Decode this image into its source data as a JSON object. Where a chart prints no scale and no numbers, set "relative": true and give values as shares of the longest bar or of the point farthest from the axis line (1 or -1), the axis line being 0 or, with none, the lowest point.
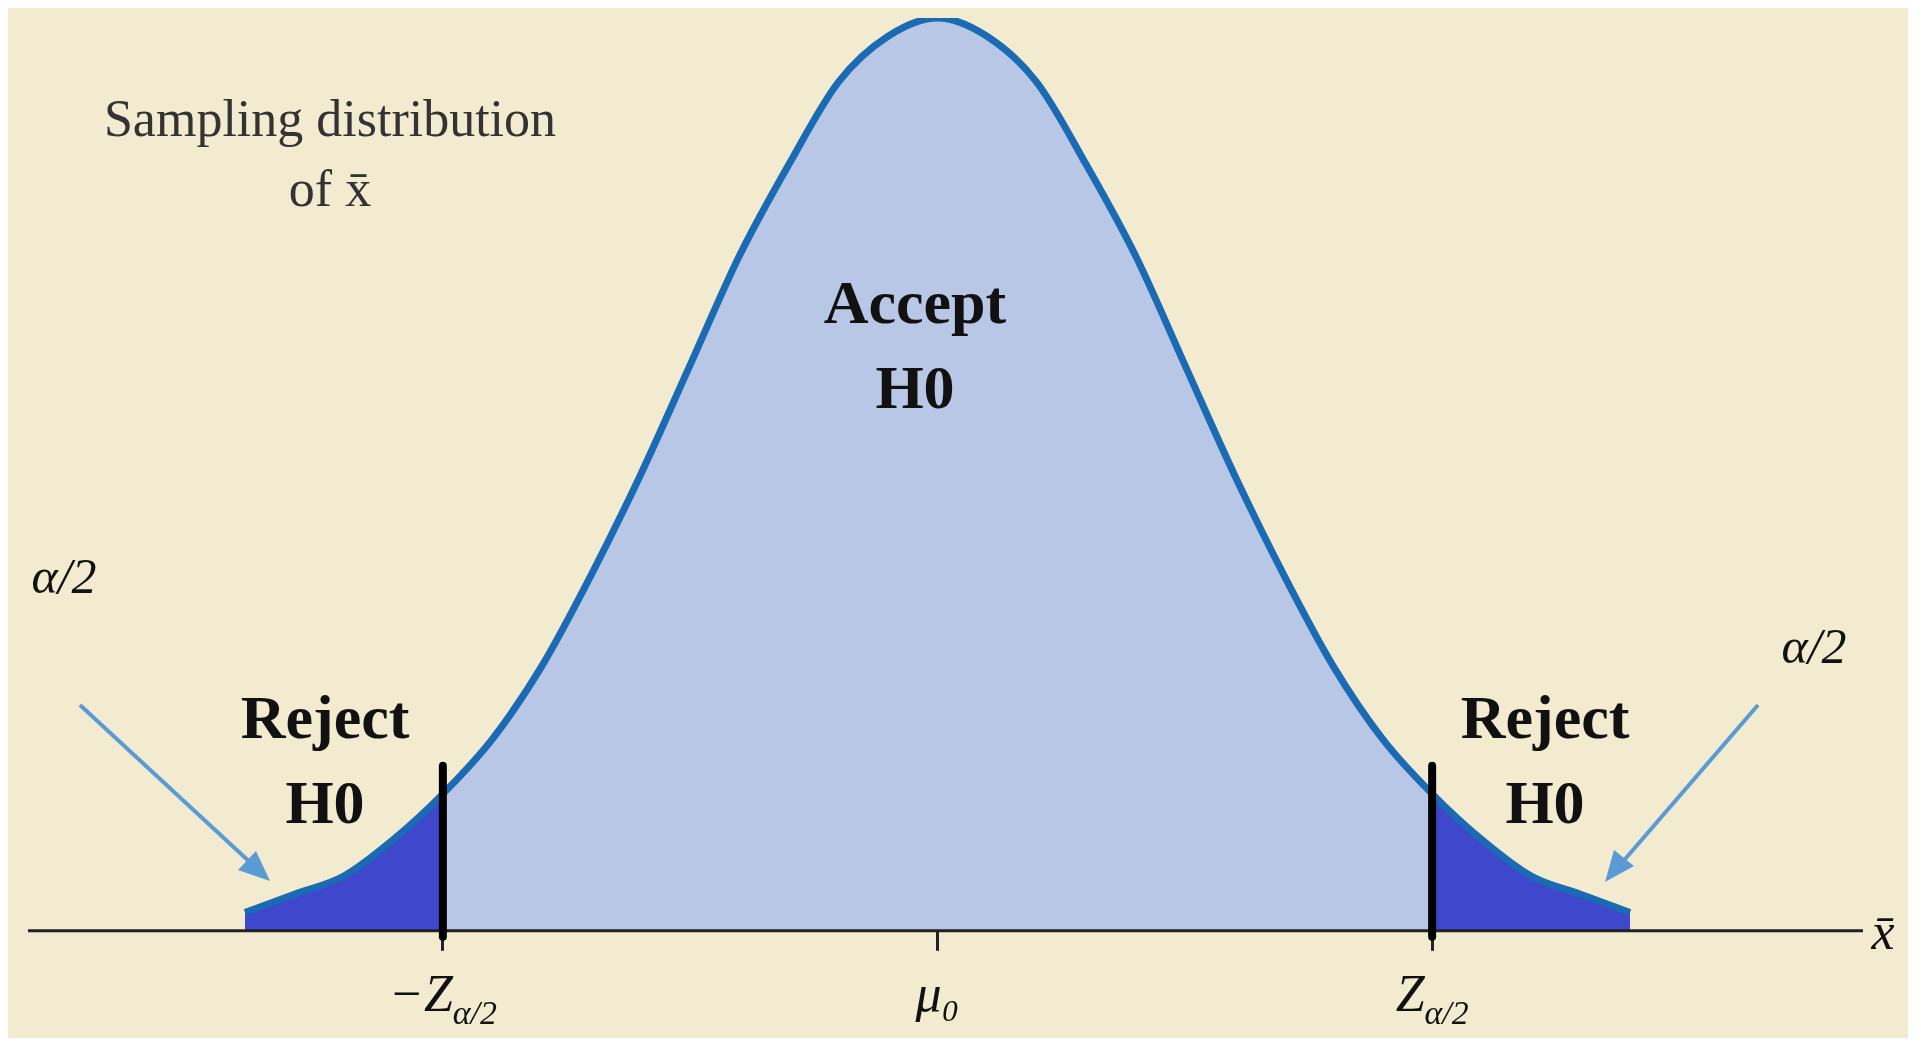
{
  "chart_data": {
    "type": "area",
    "relative": true,
    "title": "Sampling distribution of x̄",
    "xlabel": "x̄",
    "categories": [
      null,
      null,
      null,
      null,
      "−Z$_{α/2}$",
      null,
      null,
      null,
      null,
      null,
      null,
      null,
      null,
      null,
      "μ₀",
      null,
      null,
      null,
      null,
      null,
      null,
      null,
      null,
      null,
      "Z$_{α/2}$",
      null,
      null,
      null,
      null
    ],
    "series": [
      {
        "color": "#b8c7e6",
        "values": [
          null,
          null,
          null,
          null,
          0.15,
          0.21,
          0.29,
          0.39,
          0.5,
          0.62,
          0.74,
          0.84,
          0.93,
          0.98,
          1,
          0.98,
          0.93,
          0.84,
          0.74,
          0.62,
          0.5,
          0.39,
          0.29,
          0.21,
          0.15,
          null,
          null,
          null,
          null
        ]
      },
      {
        "color": "#3f48cc",
        "values": [
          0.02,
          0.04,
          0.06,
          0.1,
          0.15,
          null,
          null,
          null,
          null,
          null,
          null,
          null,
          null,
          null,
          null,
          null,
          null,
          null,
          null,
          null,
          null,
          null,
          null,
          null,
          null,
          null,
          null,
          null,
          null
        ]
      },
      {
        "color": "#3f48cc",
        "values": [
          null,
          null,
          null,
          null,
          null,
          null,
          null,
          null,
          null,
          null,
          null,
          null,
          null,
          null,
          null,
          null,
          null,
          null,
          null,
          null,
          null,
          null,
          null,
          null,
          0.15,
          0.1,
          0.06,
          0.04,
          0.02
        ]
      },
      {
        "type": "line",
        "color": "#1a6ab4",
        "values": [
          0.02,
          0.04,
          0.06,
          0.1,
          0.15,
          0.21,
          0.29,
          0.39,
          0.5,
          0.62,
          0.74,
          0.84,
          0.93,
          0.98,
          1,
          0.98,
          0.93,
          0.84,
          0.74,
          0.62,
          0.5,
          0.39,
          0.29,
          0.21,
          0.15,
          0.1,
          0.06,
          0.04,
          0.02
        ]
      }
    ],
    "ref_lines": [
      {
        "axis": "x",
        "value": "−Z$_{α/2}$",
        "color": "#000000"
      },
      {
        "axis": "x",
        "value": "Z$_{α/2}$",
        "color": "#000000"
      }
    ],
    "annotations": [
      "Accept H0",
      "Reject H0",
      "Reject H0",
      "α/2",
      "α/2"
    ],
    "legend": false
  }
}
